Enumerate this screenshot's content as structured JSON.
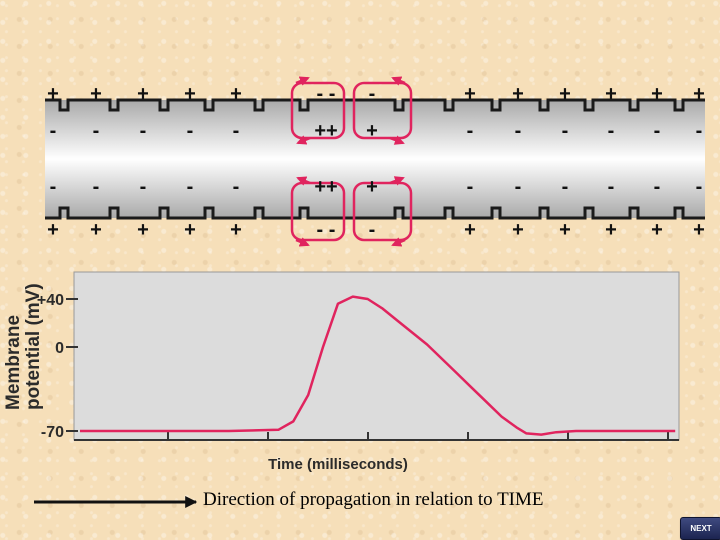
{
  "axon": {
    "top_outside_signs": [
      "+",
      "+",
      "+",
      "+",
      "+",
      "- -",
      "-",
      "+",
      "+",
      "+",
      "+",
      "+",
      "+"
    ],
    "top_inside_signs": [
      "-",
      "-",
      "-",
      "-",
      "-",
      "++",
      "+",
      "-",
      "-",
      "-",
      "-",
      "-",
      "-"
    ],
    "bottom_inside_signs": [
      "-",
      "-",
      "-",
      "-",
      "-",
      "++",
      "+",
      "-",
      "-",
      "-",
      "-",
      "-",
      "-"
    ],
    "bottom_outside_signs": [
      "+",
      "+",
      "+",
      "+",
      "+",
      "- -",
      "-",
      "+",
      "+",
      "+",
      "+",
      "+",
      "+"
    ]
  },
  "graph": {
    "y_axis_label_line1": "Membrane",
    "y_axis_label_line2": "potential (mV)",
    "y_ticks": [
      "+40",
      "0",
      "-70"
    ],
    "x_axis_label": "Time (milliseconds)"
  },
  "chart_data": {
    "type": "line",
    "title": "",
    "xlabel": "Time (milliseconds)",
    "ylabel": "Membrane potential (mV)",
    "ylim": [
      -80,
      48
    ],
    "yticks": [
      40,
      0,
      -70
    ],
    "x": [
      0,
      1,
      2,
      3,
      4,
      4.3,
      4.6,
      4.9,
      5.2,
      5.5,
      5.8,
      6.1,
      6.4,
      6.7,
      7.0,
      7.3,
      7.6,
      7.9,
      8.2,
      8.5,
      8.8,
      9.0,
      9.3,
      9.6,
      10,
      11,
      12
    ],
    "series": [
      {
        "values": [
          -70,
          -70,
          -70,
          -70,
          -69,
          -62,
          -40,
          0,
          36,
          42,
          40,
          32,
          22,
          12,
          2,
          -10,
          -22,
          -34,
          -46,
          -58,
          -67,
          -72,
          -73,
          -71,
          -70,
          -70,
          -70
        ]
      }
    ],
    "grid": false
  },
  "caption": "Direction of propagation in relation to TIME",
  "nav": {
    "next_label": "NEXT"
  },
  "colors": {
    "accent": "#e0245e",
    "axon_mid": "#ffffff",
    "axon_edge": "#a9a9a9"
  }
}
